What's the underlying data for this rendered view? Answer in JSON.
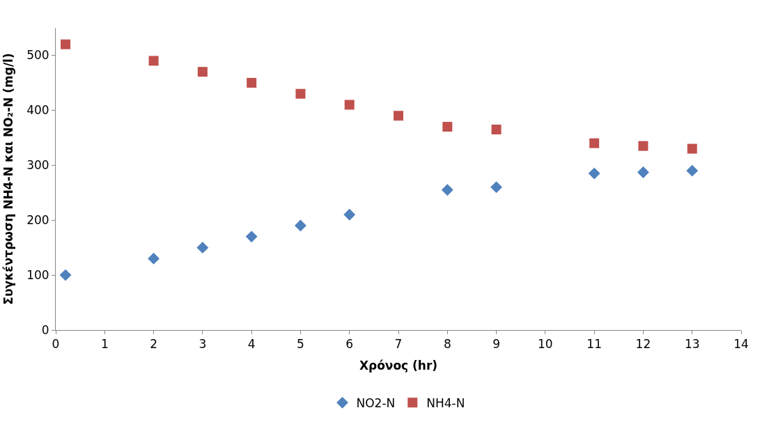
{
  "chart_data": {
    "type": "scatter",
    "xlabel": "Χρόνος (hr)",
    "ylabel": "Συγκέντρωση NH4-N και NO₂-N (mg/l)",
    "x": [
      0.2,
      2,
      3,
      4,
      5,
      6,
      7,
      8,
      9,
      11,
      12,
      13
    ],
    "series": [
      {
        "name": "NO2-N",
        "color": "#4f81bd",
        "marker": "diamond",
        "x": [
          0.2,
          2,
          3,
          4,
          5,
          6,
          8,
          9,
          11,
          12,
          13
        ],
        "values": [
          100,
          130,
          150,
          170,
          190,
          210,
          255,
          260,
          285,
          287,
          290
        ]
      },
      {
        "name": "NH4-N",
        "color": "#c0504d",
        "marker": "square",
        "values": [
          520,
          490,
          470,
          450,
          430,
          410,
          390,
          370,
          365,
          340,
          335,
          330
        ]
      }
    ],
    "xlim": [
      0,
      14
    ],
    "xticks": [
      0,
      1,
      2,
      3,
      4,
      5,
      6,
      7,
      8,
      9,
      10,
      11,
      12,
      13,
      14
    ],
    "ylim": [
      0,
      550
    ],
    "yticks": [
      0,
      100,
      200,
      300,
      400,
      500
    ],
    "legend": "bottom"
  }
}
